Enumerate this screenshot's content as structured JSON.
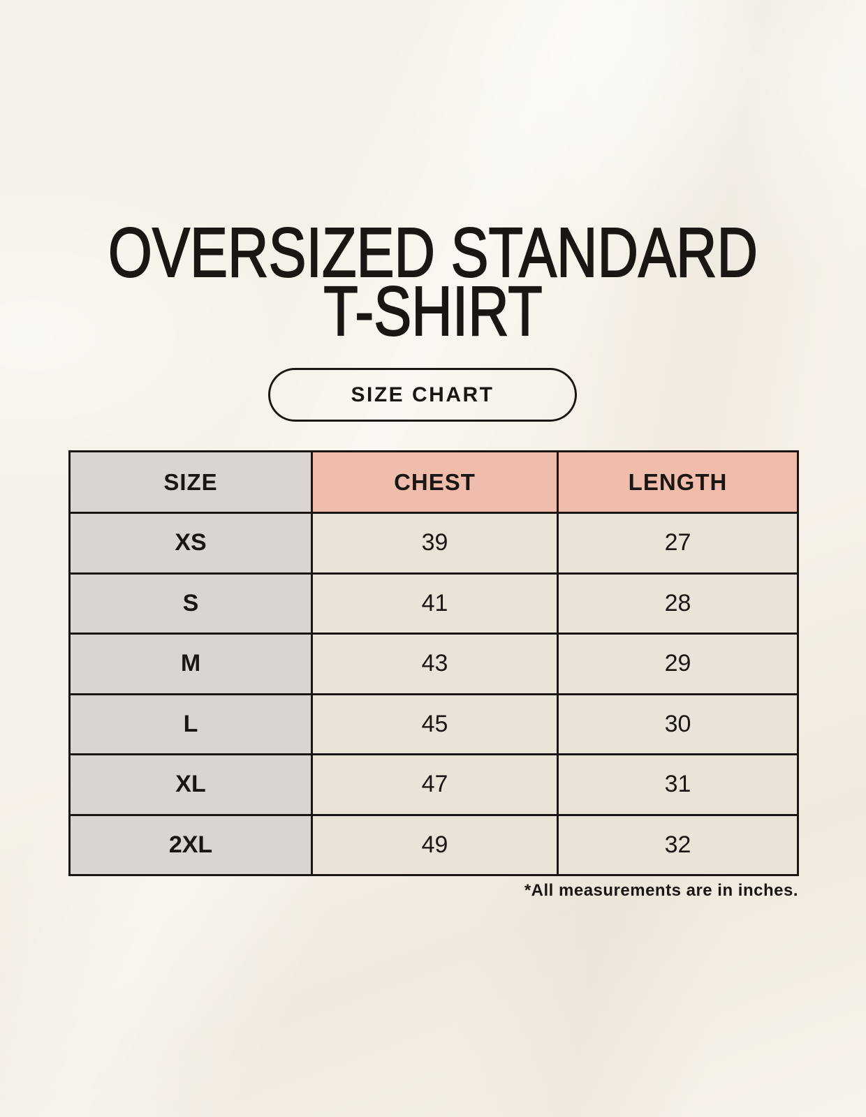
{
  "title": {
    "line1": "OVERSIZED STANDARD",
    "line2": "T-SHIRT"
  },
  "badge": {
    "label": "SIZE CHART"
  },
  "table": {
    "headers": [
      "SIZE",
      "CHEST",
      "LENGTH"
    ],
    "rows": [
      {
        "size": "XS",
        "chest": "39",
        "length": "27"
      },
      {
        "size": "S",
        "chest": "41",
        "length": "28"
      },
      {
        "size": "M",
        "chest": "43",
        "length": "29"
      },
      {
        "size": "L",
        "chest": "45",
        "length": "30"
      },
      {
        "size": "XL",
        "chest": "47",
        "length": "31"
      },
      {
        "size": "2XL",
        "chest": "49",
        "length": "32"
      }
    ],
    "footnote": "*All measurements are in inches."
  },
  "colors": {
    "bg": "#f6f1e8",
    "cell": "#eae3d7",
    "gray": "#dbd5d2",
    "salmon": "#f0bcab",
    "ink": "#1a1613"
  },
  "chart_data": {
    "type": "table",
    "title": "OVERSIZED STANDARD T-SHIRT",
    "subtitle": "SIZE CHART",
    "columns": [
      "SIZE",
      "CHEST",
      "LENGTH"
    ],
    "rows": [
      [
        "XS",
        39,
        27
      ],
      [
        "S",
        41,
        28
      ],
      [
        "M",
        43,
        29
      ],
      [
        "L",
        45,
        30
      ],
      [
        "XL",
        47,
        31
      ],
      [
        "2XL",
        49,
        32
      ]
    ],
    "units": "inches",
    "note": "*All measurements are in inches.",
    "layout_hints": {
      "header_fill_size_col": "#dbd5d2",
      "header_fill_measure_cols": "#f0bcab",
      "body_fill_size_col": "#dbd5d2",
      "body_fill_measure_cols": "#eae3d7",
      "grid": "on"
    }
  }
}
